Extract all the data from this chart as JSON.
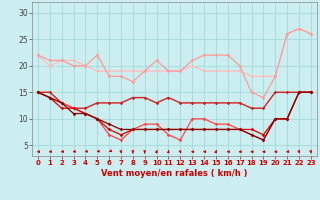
{
  "xlabel": "Vent moyen/en rafales ( km/h )",
  "bg_color": "#cceef0",
  "grid_color": "#aadddd",
  "xlim": [
    -0.5,
    23.5
  ],
  "ylim": [
    3,
    32
  ],
  "yticks": [
    5,
    10,
    15,
    20,
    25,
    30
  ],
  "xticks": [
    0,
    1,
    2,
    3,
    4,
    5,
    6,
    7,
    8,
    9,
    10,
    11,
    12,
    13,
    14,
    15,
    16,
    17,
    18,
    19,
    20,
    21,
    22,
    23
  ],
  "lines": [
    {
      "x": [
        0,
        1,
        2,
        3,
        4,
        5,
        6,
        7,
        8,
        9,
        10,
        11,
        12,
        13,
        14,
        15,
        16,
        17,
        18,
        19,
        20,
        21,
        22,
        23
      ],
      "y": [
        22,
        20,
        21,
        21,
        20,
        19,
        19,
        19,
        19,
        19,
        19,
        19,
        19,
        20,
        19,
        19,
        19,
        19,
        18,
        18,
        18,
        26,
        27,
        26
      ],
      "color": "#ffbbbb",
      "lw": 0.9
    },
    {
      "x": [
        0,
        1,
        2,
        3,
        4,
        5,
        6,
        7,
        8,
        9,
        10,
        11,
        12,
        13,
        14,
        15,
        16,
        17,
        18,
        19,
        20,
        21,
        22,
        23
      ],
      "y": [
        22,
        21,
        21,
        20,
        20,
        22,
        18,
        18,
        17,
        19,
        21,
        19,
        19,
        21,
        22,
        22,
        22,
        20,
        15,
        14,
        18,
        26,
        27,
        26
      ],
      "color": "#ff9999",
      "lw": 0.9
    },
    {
      "x": [
        0,
        1,
        2,
        3,
        4,
        5,
        6,
        7,
        8,
        9,
        10,
        11,
        12,
        13,
        14,
        15,
        16,
        17,
        18,
        19,
        20,
        21,
        22,
        23
      ],
      "y": [
        15,
        15,
        13,
        12,
        12,
        13,
        13,
        13,
        14,
        14,
        13,
        14,
        13,
        13,
        13,
        13,
        13,
        13,
        12,
        12,
        15,
        15,
        15,
        15
      ],
      "color": "#cc2222",
      "lw": 1.0
    },
    {
      "x": [
        0,
        1,
        2,
        3,
        4,
        5,
        6,
        7,
        8,
        9,
        10,
        11,
        12,
        13,
        14,
        15,
        16,
        17,
        18,
        19,
        20,
        21,
        22,
        23
      ],
      "y": [
        15,
        14,
        13,
        12,
        11,
        10,
        7,
        6,
        8,
        9,
        9,
        7,
        6,
        10,
        10,
        9,
        9,
        8,
        7,
        6,
        10,
        10,
        15,
        15
      ],
      "color": "#ff4444",
      "lw": 0.9
    },
    {
      "x": [
        0,
        1,
        2,
        3,
        4,
        5,
        6,
        7,
        8,
        9,
        10,
        11,
        12,
        13,
        14,
        15,
        16,
        17,
        18,
        19,
        20,
        21,
        22,
        23
      ],
      "y": [
        15,
        14,
        12,
        12,
        11,
        10,
        8,
        7,
        8,
        8,
        8,
        8,
        8,
        8,
        8,
        8,
        8,
        8,
        8,
        7,
        10,
        10,
        15,
        15
      ],
      "color": "#dd0000",
      "lw": 0.9
    },
    {
      "x": [
        0,
        1,
        2,
        3,
        4,
        5,
        6,
        7,
        8,
        9,
        10,
        11,
        12,
        13,
        14,
        15,
        16,
        17,
        18,
        19,
        20,
        21,
        22,
        23
      ],
      "y": [
        15,
        14,
        13,
        11,
        11,
        10,
        9,
        8,
        8,
        8,
        8,
        8,
        8,
        8,
        8,
        8,
        8,
        8,
        7,
        6,
        10,
        10,
        15,
        15
      ],
      "color": "#880000",
      "lw": 0.9
    }
  ],
  "arrow_angles": [
    260,
    255,
    250,
    245,
    240,
    235,
    225,
    175,
    180,
    180,
    10,
    5,
    170,
    265,
    255,
    10,
    265,
    265,
    268,
    268,
    265,
    255,
    175,
    175
  ],
  "arrow_color": "#cc0000"
}
